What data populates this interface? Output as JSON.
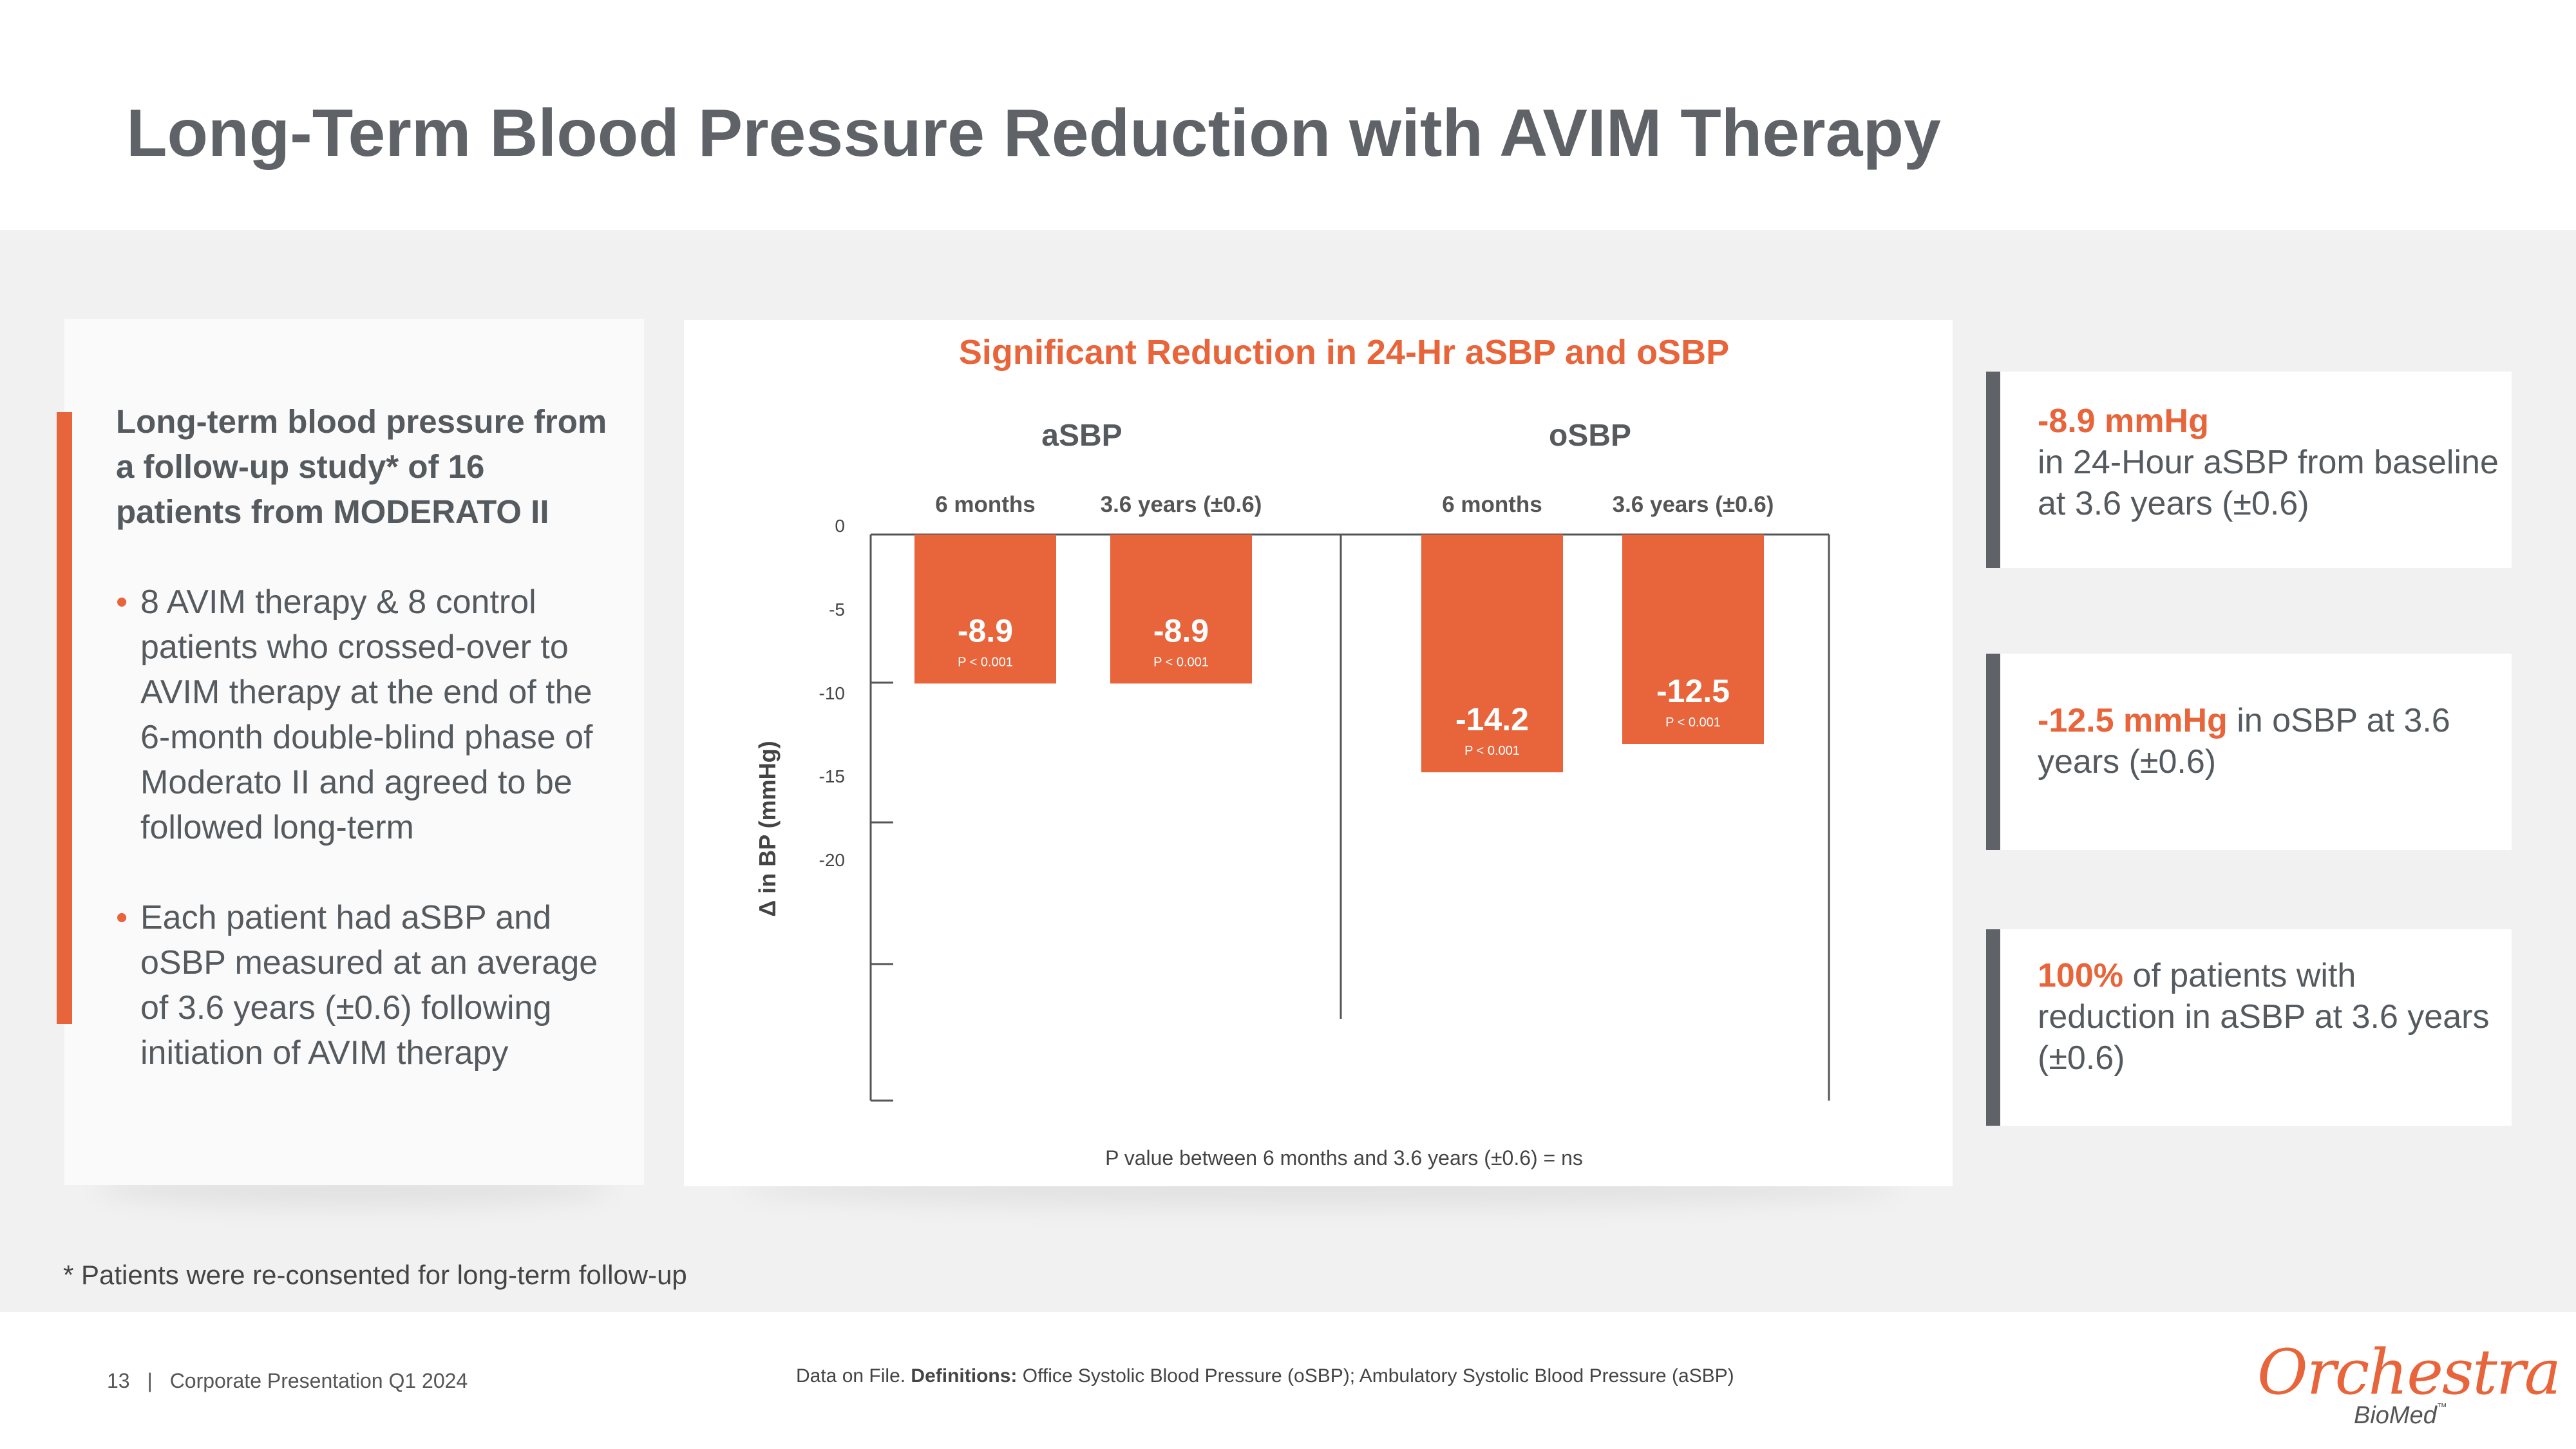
{
  "slide": {
    "title": "Long-Term Blood Pressure Reduction with AVIM Therapy",
    "left_panel": {
      "heading": "Long-term blood pressure from a follow-up study* of 16 patients from MODERATO II",
      "bullets": [
        "8 AVIM therapy & 8 control patients who crossed-over to AVIM therapy at the end of the 6-month double-blind phase of Moderato II and agreed to be followed long-term",
        "Each patient had aSBP and oSBP measured at an average of 3.6 years (±0.6)  following initiation of AVIM therapy"
      ],
      "bullet_symbol": "•"
    },
    "stats": [
      {
        "highlight": "-8.9 mmHg",
        "text": "in 24-Hour aSBP from baseline at 3.6 years (±0.6)"
      },
      {
        "highlight": "-12.5 mmHg",
        "text": " in oSBP at 3.6 years (±0.6)"
      },
      {
        "highlight": "100%",
        "text": " of patients with reduction in aSBP at 3.6 years (±0.6)"
      }
    ],
    "footnote": "* Patients were re-consented for long-term follow-up",
    "footer": {
      "page": "13",
      "separator": "|",
      "deck": "Corporate Presentation Q1 2024",
      "data_note_prefix": "Data on File. ",
      "definitions_label": "Definitions:",
      "definitions_text": " Office Systolic Blood Pressure (oSBP); Ambulatory Systolic Blood Pressure (aSBP)"
    },
    "logo": {
      "name": "Orchestra",
      "sub": "BioMed",
      "tm": "™"
    }
  },
  "colors": {
    "accent": "#e8643a",
    "gray_text": "#555a5f",
    "band": "#f1f1f1",
    "stat_bar": "#5f6368"
  },
  "chart_data": {
    "type": "bar",
    "title": "Significant Reduction in 24-Hr aSBP and oSBP",
    "ylabel": "Δ in BP (mmHg)",
    "yticks": [
      0,
      -5,
      -10,
      -15,
      -20
    ],
    "ylim": [
      -34,
      0
    ],
    "groups": [
      {
        "name": "aSBP",
        "bars": [
          {
            "label": "6 months",
            "value": -8.9,
            "display": "-8.9",
            "p": "P < 0.001"
          },
          {
            "label": "3.6 years (±0.6)",
            "value": -8.9,
            "display": "-8.9",
            "p": "P < 0.001"
          }
        ]
      },
      {
        "name": "oSBP",
        "bars": [
          {
            "label": "6 months",
            "value": -14.2,
            "display": "-14.2",
            "p": "P < 0.001"
          },
          {
            "label": "3.6 years (±0.6)",
            "value": -12.5,
            "display": "-12.5",
            "p": "P < 0.001"
          }
        ]
      }
    ],
    "note": "P value between 6 months and 3.6 years (±0.6)  = ns"
  }
}
